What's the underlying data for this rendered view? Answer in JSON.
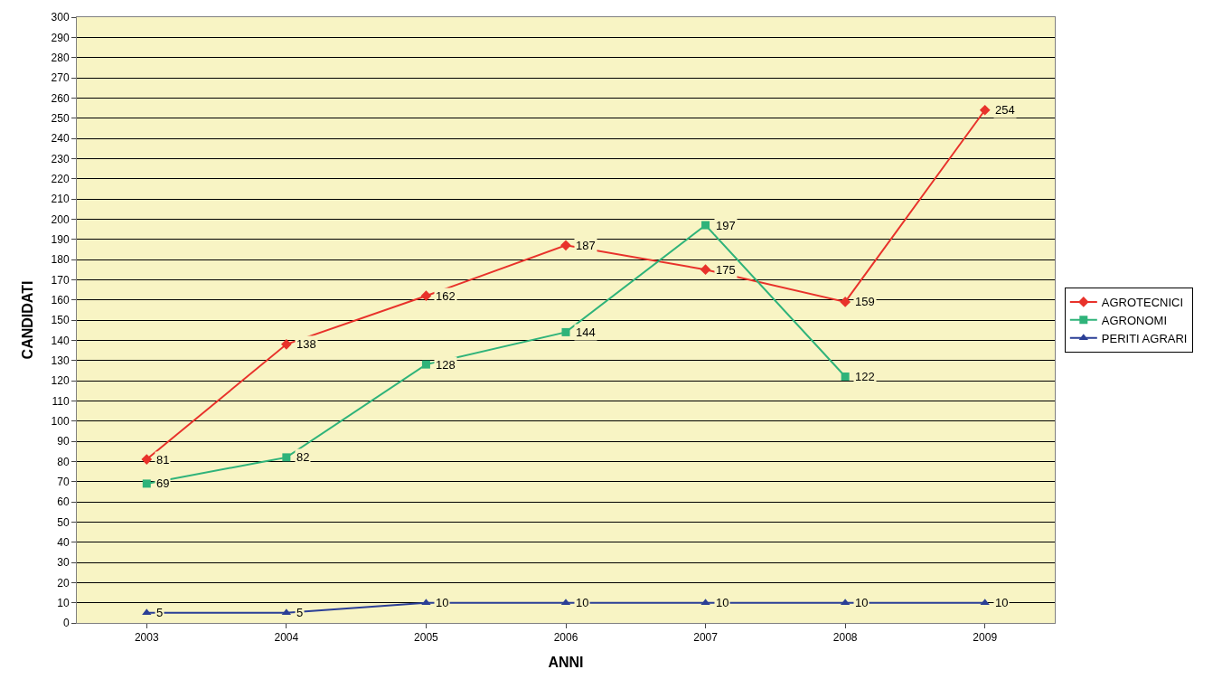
{
  "chart_data": {
    "type": "line",
    "xlabel": "ANNI",
    "ylabel": "CANDIDATI",
    "categories": [
      "2003",
      "2004",
      "2005",
      "2006",
      "2007",
      "2008",
      "2009"
    ],
    "series": [
      {
        "name": "AGROTECNICI",
        "color": "#e8322b",
        "marker": "diamond",
        "values": [
          81,
          138,
          162,
          187,
          175,
          159,
          254
        ]
      },
      {
        "name": "AGRONOMI",
        "color": "#2fb37a",
        "marker": "square",
        "values": [
          69,
          82,
          128,
          144,
          197,
          122,
          null
        ]
      },
      {
        "name": "PERITI AGRARI",
        "color": "#2b3f96",
        "marker": "triangle",
        "values": [
          5,
          5,
          10,
          10,
          10,
          10,
          10
        ]
      }
    ],
    "ylim": [
      0,
      300
    ],
    "yticks": [
      0,
      10,
      20,
      30,
      40,
      50,
      60,
      70,
      80,
      90,
      100,
      110,
      120,
      130,
      140,
      150,
      160,
      170,
      180,
      190,
      200,
      210,
      220,
      230,
      240,
      250,
      260,
      270,
      280,
      290,
      300
    ],
    "grid": "y",
    "legend": "right",
    "data_labels": true,
    "line_style": "solid"
  }
}
